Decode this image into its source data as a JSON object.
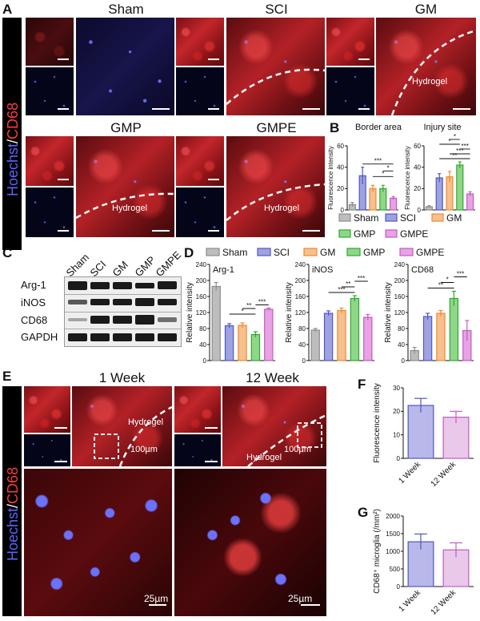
{
  "panels": {
    "A": {
      "letter": "A",
      "side_label_blue": "Hoechst",
      "side_label_red": "CD68",
      "groups": [
        "Sham",
        "SCI",
        "GM",
        "GMP",
        "GMPE"
      ],
      "hydrogel_label": "Hydrogel"
    },
    "B": {
      "letter": "B",
      "subtitles": [
        "Border area",
        "Injury site"
      ],
      "ylabel": "Fluorescence intensity"
    },
    "C": {
      "letter": "C",
      "lanes": [
        "Sham",
        "SCI",
        "GM",
        "GMP",
        "GMPE"
      ],
      "proteins": [
        "Arg-1",
        "iNOS",
        "CD68",
        "GAPDH"
      ]
    },
    "D": {
      "letter": "D",
      "ylabel": "Relative intensity"
    },
    "E": {
      "letter": "E",
      "timepoints": [
        "1 Week",
        "12 Week"
      ],
      "hydrogel_label": "Hydrogel",
      "scale_100": "100µm",
      "scale_25": "25µm",
      "side_label_blue": "Hoechst",
      "side_label_red": "CD68"
    },
    "F": {
      "letter": "F",
      "ylabel": "Fluorescence intensity"
    },
    "G": {
      "letter": "G",
      "ylabel": "CD68⁺ microglia (/mm²)"
    }
  },
  "legend": [
    "Sham",
    "SCI",
    "GM",
    "GMP",
    "GMPE"
  ],
  "colors": {
    "Sham": "#bdbdbd",
    "SCI": "#9ea3e0",
    "GM": "#f6c08f",
    "GMP": "#8fd68a",
    "GMPE": "#e7a3e3",
    "Sham_edge": "#8c8c8c",
    "SCI_edge": "#4f57c6",
    "GM_edge": "#f08a2a",
    "GMP_edge": "#2eaa2a",
    "GMPE_edge": "#c25cc0"
  },
  "chart_data": [
    {
      "id": "B-border",
      "type": "bar",
      "title": "Border area",
      "categories": [
        "Sham",
        "SCI",
        "GM",
        "GMP",
        "GMPE"
      ],
      "values": [
        5,
        32,
        20,
        20,
        11
      ],
      "errors": [
        2,
        8,
        3,
        3,
        1.5
      ],
      "ylim": [
        0,
        60
      ],
      "yticks": [
        0,
        20,
        40,
        60
      ],
      "ylabel": "Fluorescence intensity",
      "significance": [
        {
          "from": "SCI",
          "to": "GMPE",
          "label": "***"
        },
        {
          "from": "GM",
          "to": "GMPE",
          "label": "*"
        },
        {
          "from": "GMP",
          "to": "GMPE",
          "label": "*"
        }
      ]
    },
    {
      "id": "B-injury",
      "type": "bar",
      "title": "Injury site",
      "categories": [
        "Sham",
        "SCI",
        "GM",
        "GMP",
        "GMPE"
      ],
      "values": [
        3,
        30,
        31,
        42,
        15
      ],
      "errors": [
        1,
        4,
        5,
        3,
        2
      ],
      "ylim": [
        0,
        60
      ],
      "yticks": [
        0,
        20,
        40,
        60
      ],
      "ylabel": "Fluorescence intensity",
      "significance": [
        {
          "from": "SCI",
          "to": "GMPE",
          "label": "**"
        },
        {
          "from": "GM",
          "to": "GMPE",
          "label": "***"
        },
        {
          "from": "GMP",
          "to": "GMPE",
          "label": "***"
        },
        {
          "from": "SCI",
          "to": "GMP",
          "label": "*"
        },
        {
          "from": "GM",
          "to": "GMP",
          "label": "*"
        }
      ]
    },
    {
      "id": "D-arg1",
      "type": "bar",
      "title": "Arg-1",
      "categories": [
        "Sham",
        "SCI",
        "GM",
        "GMP",
        "GMPE"
      ],
      "values": [
        185,
        87,
        88,
        65,
        128
      ],
      "errors": [
        10,
        5,
        6,
        7,
        3
      ],
      "ylim": [
        0,
        240
      ],
      "yticks": [
        0,
        40,
        80,
        120,
        160,
        200,
        240
      ],
      "ylabel": "Relative intensity",
      "significance": [
        {
          "from": "GMP",
          "to": "GMPE",
          "label": "***"
        },
        {
          "from": "SCI",
          "to": "GMP",
          "label": "*"
        },
        {
          "from": "GM",
          "to": "GMP",
          "label": "**"
        }
      ]
    },
    {
      "id": "D-inos",
      "type": "bar",
      "title": "iNOS",
      "categories": [
        "Sham",
        "SCI",
        "GM",
        "GMP",
        "GMPE"
      ],
      "values": [
        76,
        118,
        125,
        155,
        108
      ],
      "errors": [
        4,
        6,
        6,
        7,
        7
      ],
      "ylim": [
        0,
        240
      ],
      "yticks": [
        0,
        40,
        80,
        120,
        160,
        200,
        240
      ],
      "ylabel": "Relative intensity",
      "significance": [
        {
          "from": "SCI",
          "to": "GMP",
          "label": "***"
        },
        {
          "from": "GM",
          "to": "GMP",
          "label": "**"
        },
        {
          "from": "GMP",
          "to": "GMPE",
          "label": "***"
        }
      ]
    },
    {
      "id": "D-cd68",
      "type": "bar",
      "title": "CD68",
      "categories": [
        "Sham",
        "SCI",
        "GM",
        "GMP",
        "GMPE"
      ],
      "values": [
        25,
        110,
        118,
        155,
        75
      ],
      "errors": [
        8,
        8,
        7,
        18,
        25
      ],
      "ylim": [
        0,
        240
      ],
      "yticks": [
        0,
        40,
        80,
        120,
        160,
        200,
        240
      ],
      "ylabel": "Relative intensity",
      "significance": [
        {
          "from": "SCI",
          "to": "GMP",
          "label": "**"
        },
        {
          "from": "GM",
          "to": "GMP",
          "label": "*"
        },
        {
          "from": "GMP",
          "to": "GMPE",
          "label": "***"
        }
      ]
    },
    {
      "id": "F",
      "type": "bar",
      "categories": [
        "1 Week",
        "12 Week"
      ],
      "values": [
        22.5,
        17.5
      ],
      "errors": [
        3,
        2.5
      ],
      "ylim": [
        0,
        30
      ],
      "yticks": [
        0,
        10,
        20,
        30
      ],
      "ylabel": "Fluorescence intensity"
    },
    {
      "id": "G",
      "type": "bar",
      "categories": [
        "1 Week",
        "12 Week"
      ],
      "values": [
        1270,
        1040
      ],
      "errors": [
        220,
        200
      ],
      "ylim": [
        0,
        2000
      ],
      "yticks": [
        0,
        500,
        1000,
        1500,
        2000
      ],
      "ylabel": "CD68⁺ microglia (/mm²)"
    }
  ]
}
